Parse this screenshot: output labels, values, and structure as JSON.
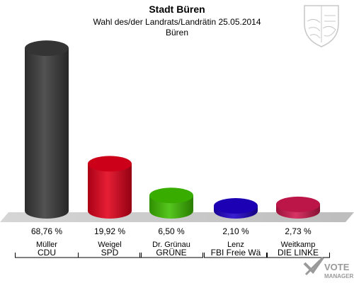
{
  "header": {
    "title": "Stadt Büren",
    "subtitle": "Wahl des/der Landrats/Landrätin 25.05.2014",
    "location": "Büren"
  },
  "watermark": {
    "text": "VOTE",
    "subtext": "MANAGER"
  },
  "crest": {
    "icon": "nrw-coat-of-arms-icon"
  },
  "chart_data": {
    "type": "bar",
    "categories": [
      "Müller",
      "Weigel",
      "Dr. Grünau",
      "Lenz",
      "Weitkamp"
    ],
    "parties": [
      "CDU",
      "SPD",
      "GRÜNE",
      "FBI Freie Wä",
      "DIE LINKE"
    ],
    "values": [
      68.76,
      19.92,
      6.5,
      2.1,
      2.73
    ],
    "value_labels": [
      "68,76 %",
      "19,92 %",
      "6,50 %",
      "2,10 %",
      "2,73 %"
    ],
    "colors": [
      "#3a3a3a",
      "#e3001b",
      "#3fbf00",
      "#1f00c8",
      "#d0184f"
    ],
    "ylim": [
      0,
      70
    ],
    "grid": false,
    "legend": "none"
  }
}
